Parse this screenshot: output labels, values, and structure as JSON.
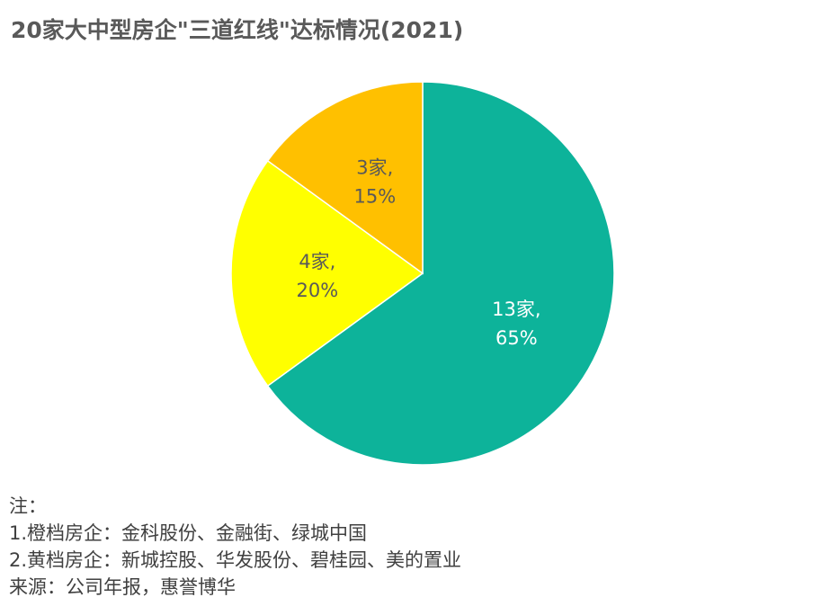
{
  "chart_data": {
    "type": "pie",
    "title": "20家大中型房企\"三道红线\"达标情况(2021)",
    "slices": [
      {
        "label": "13家,",
        "percent_label": "65%",
        "value": 65,
        "color": "#0db39a",
        "text_color": "#ffffff"
      },
      {
        "label": "4家,",
        "percent_label": "20%",
        "value": 20,
        "color": "#ffff00",
        "text_color": "#595959"
      },
      {
        "label": "3家,",
        "percent_label": "15%",
        "value": 15,
        "color": "#ffc000",
        "text_color": "#595959"
      }
    ]
  },
  "notes": {
    "heading": "注：",
    "line1": "1.橙档房企：金科股份、金融街、绿城中国",
    "line2": "2.黄档房企：新城控股、华发股份、碧桂园、美的置业",
    "source": "来源：公司年报，惠誉博华"
  }
}
